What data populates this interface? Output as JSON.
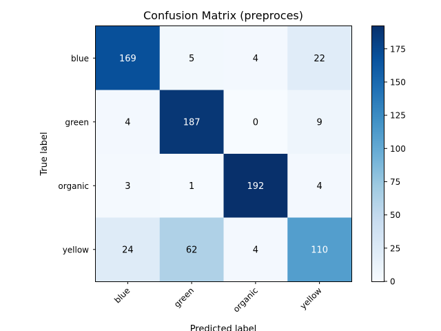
{
  "chart_data": {
    "type": "heatmap",
    "title": "Confusion Matrix (preproces)",
    "xlabel": "Predicted label",
    "ylabel": "True label",
    "x_categories": [
      "blue",
      "green",
      "organic",
      "yellow"
    ],
    "y_categories": [
      "blue",
      "green",
      "organic",
      "yellow"
    ],
    "matrix": [
      [
        169,
        5,
        4,
        22
      ],
      [
        4,
        187,
        0,
        9
      ],
      [
        3,
        1,
        192,
        4
      ],
      [
        24,
        62,
        4,
        110
      ]
    ],
    "colormap": "Blues",
    "color_range": [
      0,
      192
    ],
    "colorbar_ticks": [
      0,
      25,
      50,
      75,
      100,
      125,
      150,
      175
    ],
    "grid": false
  }
}
